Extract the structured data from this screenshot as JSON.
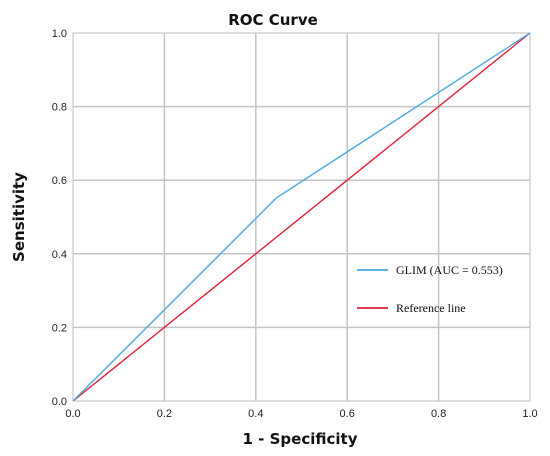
{
  "chart_data": {
    "type": "line",
    "title": "ROC Curve",
    "xlabel": "1 - Specificity",
    "ylabel": "Sensitivity",
    "xlim": [
      0,
      1
    ],
    "ylim": [
      0,
      1
    ],
    "x_ticks": [
      "0.0",
      "0.2",
      "0.4",
      "0.6",
      "0.8",
      "1.0"
    ],
    "y_ticks": [
      "0.0",
      "0.2",
      "0.4",
      "0.6",
      "0.8",
      "1.0"
    ],
    "grid": true,
    "legend_position": "right",
    "series": [
      {
        "name": "GLIM (AUC = 0.553)",
        "color": "#4aa8e0",
        "points": [
          [
            0,
            0
          ],
          [
            0.445,
            0.552
          ],
          [
            1,
            1
          ]
        ]
      },
      {
        "name": "Reference line",
        "color": "#e0203a",
        "points": [
          [
            0,
            0
          ],
          [
            1,
            1
          ]
        ]
      }
    ]
  }
}
